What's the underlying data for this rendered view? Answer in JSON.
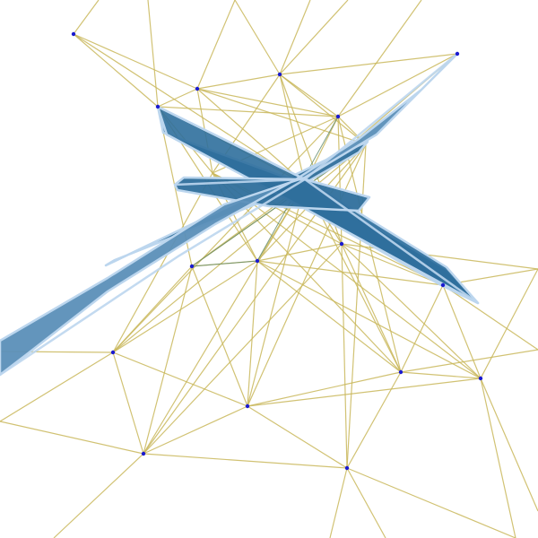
{
  "scene": {
    "background": "#ffffff",
    "colors": {
      "wire": "#c9b75a",
      "wire_dark": "#5f8a6a",
      "vertex": "#1a1ad0",
      "panel_fill": "#2f6f9c",
      "panel_fill_light": "#5b8fb8",
      "panel_edge": "#bcd6ee"
    },
    "elements": {
      "wireframe": "wire-mesh",
      "vertices": "vertex-points",
      "panels": "crossed-blade-panels"
    }
  }
}
